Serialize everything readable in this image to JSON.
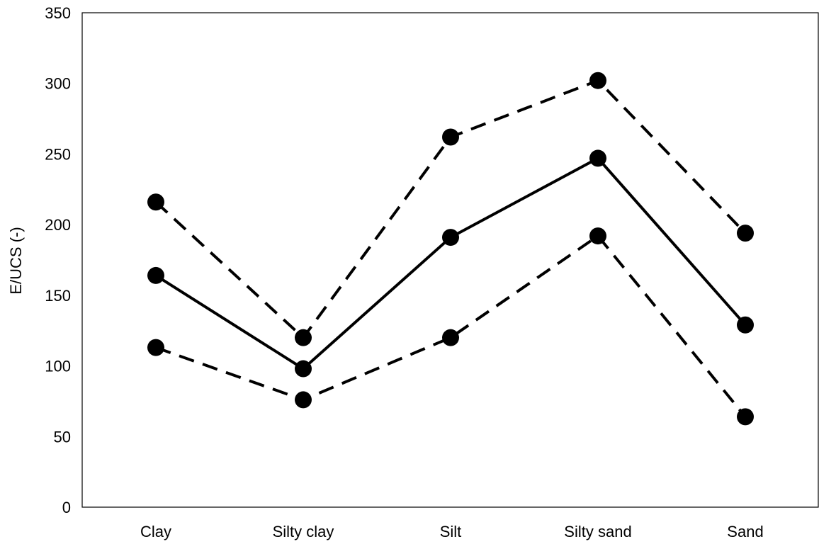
{
  "chart_data": {
    "type": "line",
    "categories": [
      "Clay",
      "Silty clay",
      "Silt",
      "Silty sand",
      "Sand"
    ],
    "series": [
      {
        "values": [
          216,
          120,
          262,
          302,
          194
        ],
        "line_style": "dashed",
        "color": "#000000",
        "marker": "circle"
      },
      {
        "values": [
          164,
          98,
          191,
          247,
          129
        ],
        "line_style": "solid",
        "color": "#000000",
        "marker": "circle"
      },
      {
        "values": [
          113,
          76,
          120,
          192,
          64
        ],
        "line_style": "dashed",
        "color": "#000000",
        "marker": "circle"
      }
    ],
    "ylabel": "E/UCS (-)",
    "xlabel": "",
    "ylim": [
      0,
      350
    ],
    "yticks": [
      0,
      50,
      100,
      150,
      200,
      250,
      300,
      350
    ],
    "grid": false,
    "legend": "none"
  }
}
